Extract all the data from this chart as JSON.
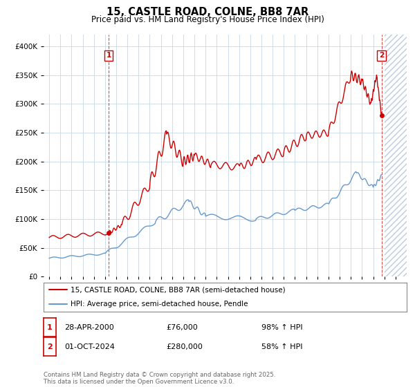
{
  "title": "15, CASTLE ROAD, COLNE, BB8 7AR",
  "subtitle": "Price paid vs. HM Land Registry's House Price Index (HPI)",
  "legend_line1": "15, CASTLE ROAD, COLNE, BB8 7AR (semi-detached house)",
  "legend_line2": "HPI: Average price, semi-detached house, Pendle",
  "footnote": "Contains HM Land Registry data © Crown copyright and database right 2025.\nThis data is licensed under the Open Government Licence v3.0.",
  "annotation1_label": "1",
  "annotation1_date": "28-APR-2000",
  "annotation1_price": "£76,000",
  "annotation1_hpi": "98% ↑ HPI",
  "annotation2_label": "2",
  "annotation2_date": "01-OCT-2024",
  "annotation2_price": "£280,000",
  "annotation2_hpi": "58% ↑ HPI",
  "red_color": "#cc0000",
  "blue_color": "#6699cc",
  "background_color": "#ffffff",
  "grid_color": "#c8d8e8",
  "ylim": [
    0,
    420000
  ],
  "xlim_start": 1994.5,
  "xlim_end": 2027.0,
  "sale1_x": 2000.33,
  "sale1_y": 76000,
  "sale2_x": 2024.75,
  "sale2_y": 280000,
  "hatch_start": 2025.0
}
